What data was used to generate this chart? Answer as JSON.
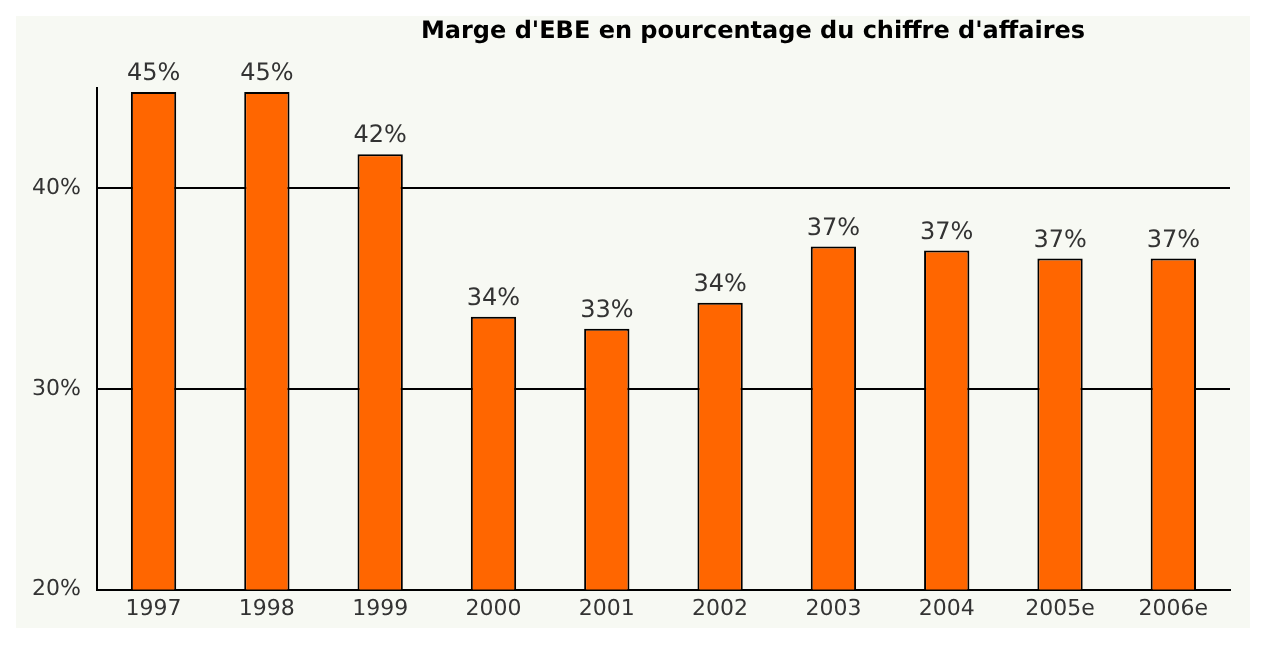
{
  "chart_data": {
    "type": "bar",
    "title": "Marge d'EBE en pourcentage du chiffre d'affaires",
    "categories": [
      "1997",
      "1998",
      "1999",
      "2000",
      "2001",
      "2002",
      "2003",
      "2004",
      "2005e",
      "2006e"
    ],
    "values": [
      44.8,
      44.8,
      41.7,
      33.6,
      33.0,
      34.3,
      37.1,
      36.9,
      36.5,
      36.5
    ],
    "value_labels": [
      "45%",
      "45%",
      "42%",
      "34%",
      "33%",
      "34%",
      "37%",
      "37%",
      "37%",
      "37%"
    ],
    "color": "#ff6600",
    "ylim": [
      20,
      45
    ],
    "yticks": [
      {
        "value": 20,
        "label": "20%"
      },
      {
        "value": 30,
        "label": "30%"
      },
      {
        "value": 40,
        "label": "40%"
      }
    ],
    "grid": "y"
  }
}
